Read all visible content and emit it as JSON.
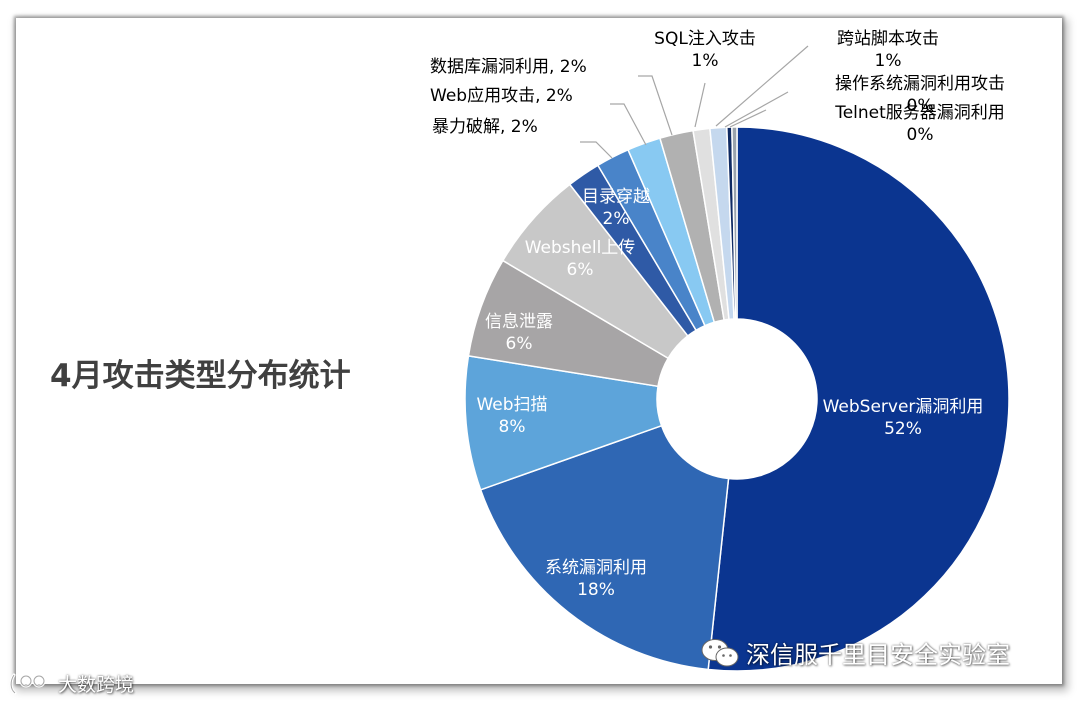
{
  "colors": {
    "slices": [
      "#0b3590",
      "#2f67b4",
      "#5da4da",
      "#a7a5a6",
      "#c8c8c8",
      "#2f5aa6",
      "#4984c9",
      "#88c9f2",
      "#b1b1b1",
      "#e0e0e0",
      "#c5d8ee",
      "#0f2a63",
      "#9aa3ad"
    ]
  },
  "chart_data": {
    "type": "pie",
    "style": "donut",
    "title": "4月攻击类型分布统计",
    "legend": "none",
    "slices": [
      {
        "name": "WebServer漏洞利用",
        "value": 52,
        "label": "52%"
      },
      {
        "name": "系统漏洞利用",
        "value": 18,
        "label": "18%"
      },
      {
        "name": "Web扫描",
        "value": 8,
        "label": "8%"
      },
      {
        "name": "信息泄露",
        "value": 6,
        "label": "6%"
      },
      {
        "name": "Webshell上传",
        "value": 6,
        "label": "6%"
      },
      {
        "name": "目录穿越",
        "value": 2,
        "label": "2%"
      },
      {
        "name": "暴力破解",
        "value": 2,
        "label": "暴力破解, 2%"
      },
      {
        "name": "Web应用攻击",
        "value": 2,
        "label": "Web应用攻击, 2%"
      },
      {
        "name": "数据库漏洞利用",
        "value": 2,
        "label": "数据库漏洞利用, 2%"
      },
      {
        "name": "SQL注入攻击",
        "value": 1,
        "label": "1%"
      },
      {
        "name": "跨站脚本攻击",
        "value": 1,
        "label": "1%"
      },
      {
        "name": "操作系统漏洞利用攻击",
        "value": 0.3,
        "label": "0%"
      },
      {
        "name": "Telnet服务器漏洞利用",
        "value": 0.3,
        "label": "0%"
      }
    ]
  },
  "watermarks": {
    "right": "深信服千里目安全实验室",
    "left": "大数跨境"
  }
}
